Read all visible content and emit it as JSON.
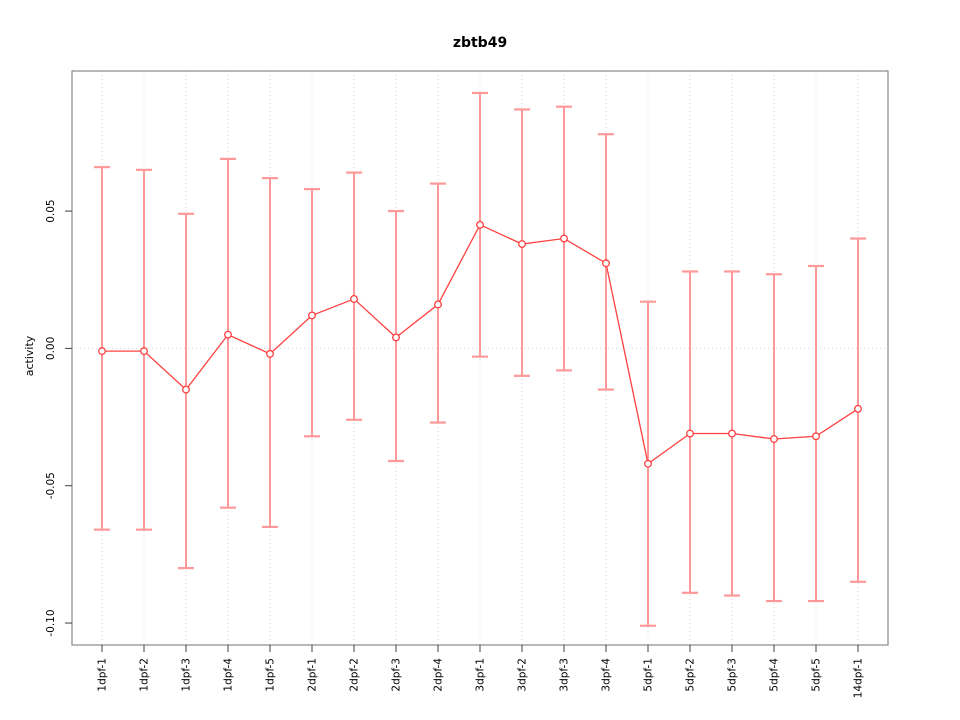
{
  "chart_data": {
    "type": "line",
    "title": "zbtb49",
    "xlabel": "",
    "ylabel": "activity",
    "legend": "none",
    "marker": "open-circle",
    "error_bars": true,
    "grid": "dotted vertical line at each category and dotted horizontal line at y=0",
    "categories": [
      "1dpf-1",
      "1dpf-2",
      "1dpf-3",
      "1dpf-4",
      "1dpf-5",
      "2dpf-1",
      "2dpf-2",
      "2dpf-3",
      "2dpf-4",
      "3dpf-1",
      "3dpf-2",
      "3dpf-3",
      "3dpf-4",
      "5dpf-1",
      "5dpf-2",
      "5dpf-3",
      "5dpf-4",
      "5dpf-5",
      "14dpf-1"
    ],
    "series": [
      {
        "name": "activity",
        "values": [
          -0.001,
          -0.001,
          -0.015,
          0.005,
          -0.002,
          0.012,
          0.018,
          0.004,
          0.016,
          0.045,
          0.038,
          0.04,
          0.031,
          -0.042,
          -0.031,
          -0.031,
          -0.033,
          -0.032,
          -0.022
        ],
        "upper": [
          0.066,
          0.065,
          0.049,
          0.069,
          0.062,
          0.058,
          0.064,
          0.05,
          0.06,
          0.093,
          0.087,
          0.088,
          0.078,
          0.017,
          0.028,
          0.028,
          0.027,
          0.03,
          0.04
        ],
        "lower": [
          -0.066,
          -0.066,
          -0.08,
          -0.058,
          -0.065,
          -0.032,
          -0.026,
          -0.041,
          -0.027,
          -0.003,
          -0.01,
          -0.008,
          -0.015,
          -0.101,
          -0.089,
          -0.09,
          -0.092,
          -0.092,
          -0.085
        ]
      }
    ],
    "ylim": [
      -0.108,
      0.101
    ],
    "yticks": [
      0.05,
      0,
      -0.05,
      -0.1
    ],
    "ytick_labels": [
      "0.05",
      "0.00",
      "-0.05",
      "-0.10"
    ]
  },
  "colors": {
    "series": "#ff4040",
    "errorbar": "#ff9999",
    "grid": "#d8d8d8",
    "box": "#888888",
    "tick": "#404040",
    "text": "#000000",
    "point_fill": "#ffffff"
  }
}
